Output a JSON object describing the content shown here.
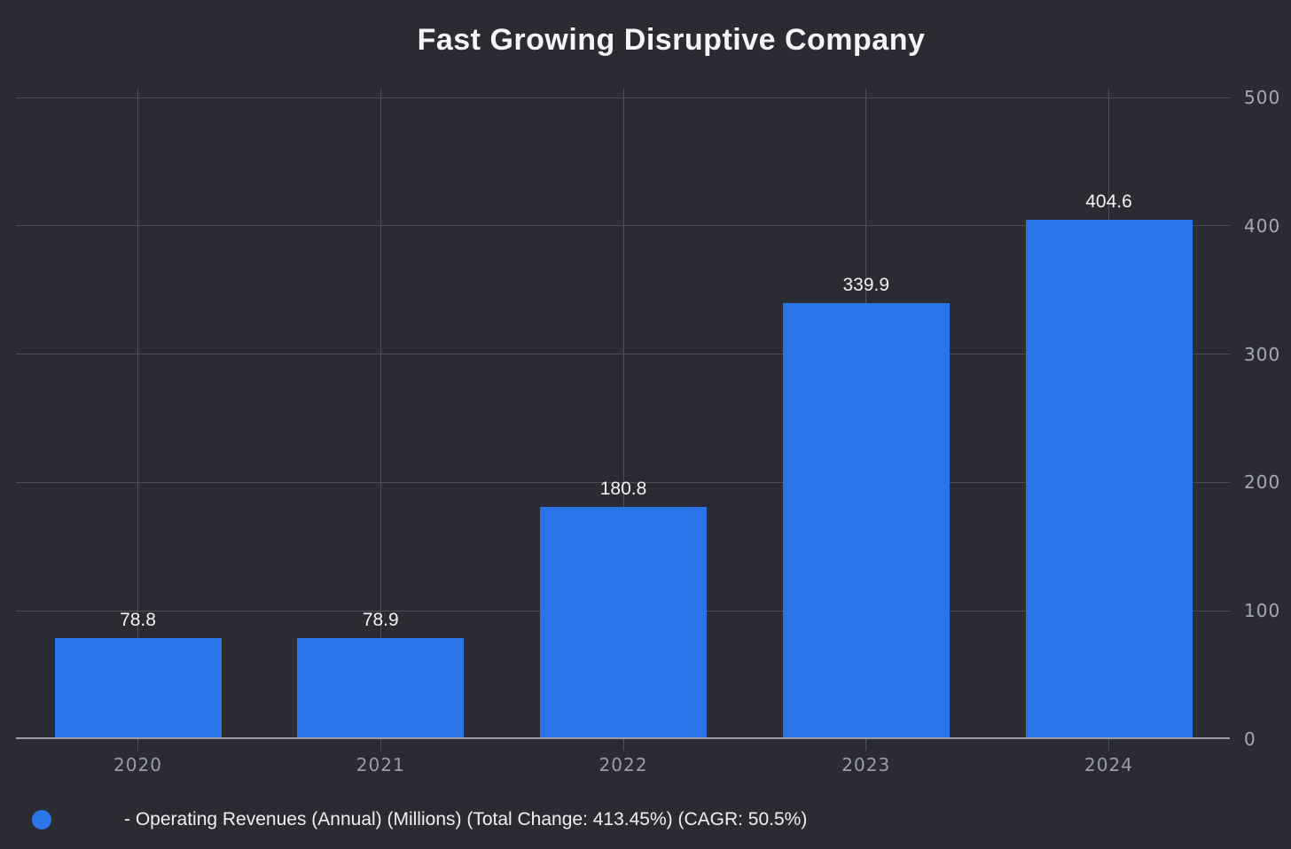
{
  "chart_data": {
    "type": "bar",
    "title": "Fast Growing Disruptive Company",
    "categories": [
      "2020",
      "2021",
      "2022",
      "2023",
      "2024"
    ],
    "values": [
      78.8,
      78.9,
      180.8,
      339.9,
      404.6
    ],
    "value_labels": [
      "78.8",
      "78.9",
      "180.8",
      "339.9",
      "404.6"
    ],
    "legend_label": "- Operating Revenues (Annual) (Millions) (Total Change: 413.45%) (CAGR: 50.5%)",
    "ylim": [
      0,
      500
    ],
    "yticks": [
      0,
      100,
      200,
      300,
      400,
      500
    ],
    "ytick_labels": [
      "0",
      "100",
      "200",
      "300",
      "400",
      "500"
    ],
    "axis_side": "right",
    "grid": true,
    "legend_position": "bottom-left",
    "colors": {
      "background": "#2a2b33",
      "bar": "#2b74e8",
      "legend_dot": "#2b77ea",
      "gridline": "#4d4f59",
      "axis_line": "#9b9ea6",
      "title_text": "#f4f5f7",
      "value_label_text": "#f1f2f4",
      "tick_label_text": "#9b9da6",
      "legend_text": "#eef0f2"
    }
  }
}
